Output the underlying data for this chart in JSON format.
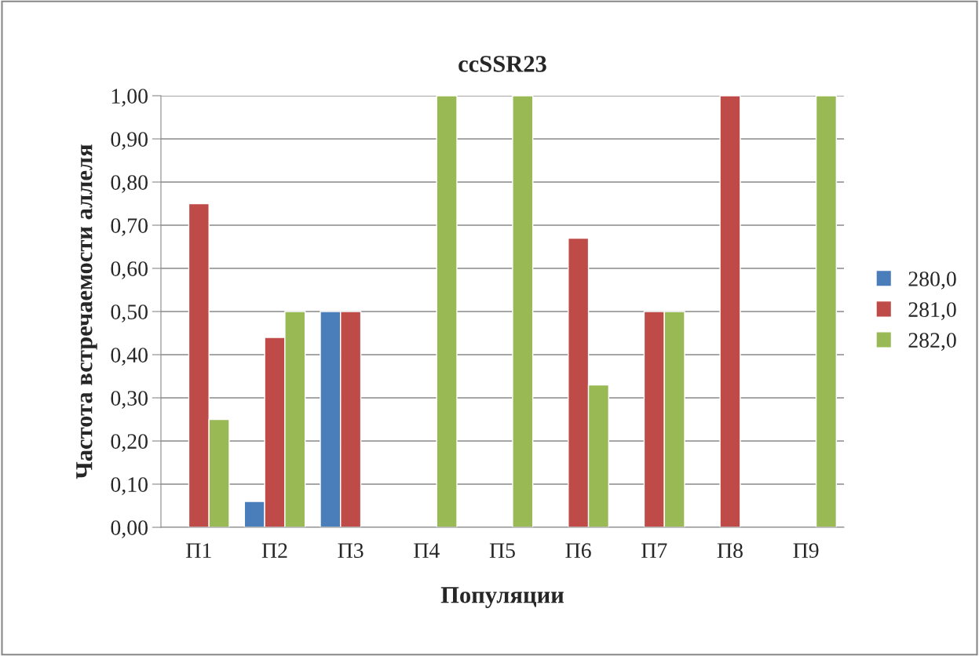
{
  "chart_data": {
    "type": "bar",
    "title": "ccSSR23",
    "xlabel": "Популяции",
    "ylabel": "Частота встречаемости аллеля",
    "categories": [
      "П1",
      "П2",
      "П3",
      "П4",
      "П5",
      "П6",
      "П7",
      "П8",
      "П9"
    ],
    "series": [
      {
        "name": "280,0",
        "color": "#4a7ebb",
        "values": [
          null,
          0.06,
          0.5,
          null,
          null,
          null,
          null,
          null,
          null
        ]
      },
      {
        "name": "281,0",
        "color": "#be4b48",
        "values": [
          0.75,
          0.44,
          0.5,
          null,
          null,
          0.67,
          0.5,
          1.0,
          null
        ]
      },
      {
        "name": "282,0",
        "color": "#98b954",
        "values": [
          0.25,
          0.5,
          null,
          1.0,
          1.0,
          0.33,
          0.5,
          null,
          1.0
        ]
      }
    ],
    "ylim": [
      0,
      1
    ],
    "yticks": [
      {
        "value": 0,
        "label": "0,00"
      },
      {
        "value": 0.1,
        "label": "0,10"
      },
      {
        "value": 0.2,
        "label": "0,20"
      },
      {
        "value": 0.3,
        "label": "0,30"
      },
      {
        "value": 0.4,
        "label": "0,40"
      },
      {
        "value": 0.5,
        "label": "0,50"
      },
      {
        "value": 0.6,
        "label": "0,60"
      },
      {
        "value": 0.7,
        "label": "0,70"
      },
      {
        "value": 0.8,
        "label": "0,80"
      },
      {
        "value": 0.9,
        "label": "0,90"
      },
      {
        "value": 1.0,
        "label": "1,00"
      }
    ],
    "grid": "y",
    "legend": "right"
  }
}
